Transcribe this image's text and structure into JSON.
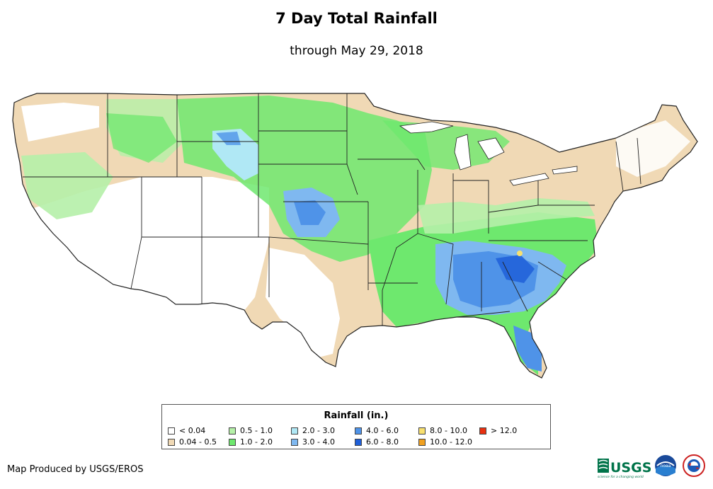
{
  "title": "7 Day Total Rainfall",
  "subtitle": "through May 29, 2018",
  "legend": {
    "title": "Rainfall (in.)",
    "items": [
      {
        "label": "< 0.04",
        "color": "#ffffff"
      },
      {
        "label": "0.04 - 0.5",
        "color": "#f0d9b5"
      },
      {
        "label": "0.5 - 1.0",
        "color": "#b5f0a8"
      },
      {
        "label": "1.0 - 2.0",
        "color": "#6ee86e"
      },
      {
        "label": "2.0 - 3.0",
        "color": "#b0e8f5"
      },
      {
        "label": "3.0 - 4.0",
        "color": "#7fb8f0"
      },
      {
        "label": "4.0 - 6.0",
        "color": "#4f93e8"
      },
      {
        "label": "6.0 - 8.0",
        "color": "#1f5fd8"
      },
      {
        "label": "8.0 - 10.0",
        "color": "#f8e070"
      },
      {
        "label": "10.0 - 12.0",
        "color": "#f0a020"
      },
      {
        "label": "> 12.0",
        "color": "#e83010"
      }
    ]
  },
  "credit": "Map Produced by USGS/EROS",
  "logos": {
    "usgs": "USGS",
    "usgs_tagline": "science for a changing world",
    "noaa": "noaa",
    "nws": "NATIONAL WEATHER SERVICE"
  }
}
